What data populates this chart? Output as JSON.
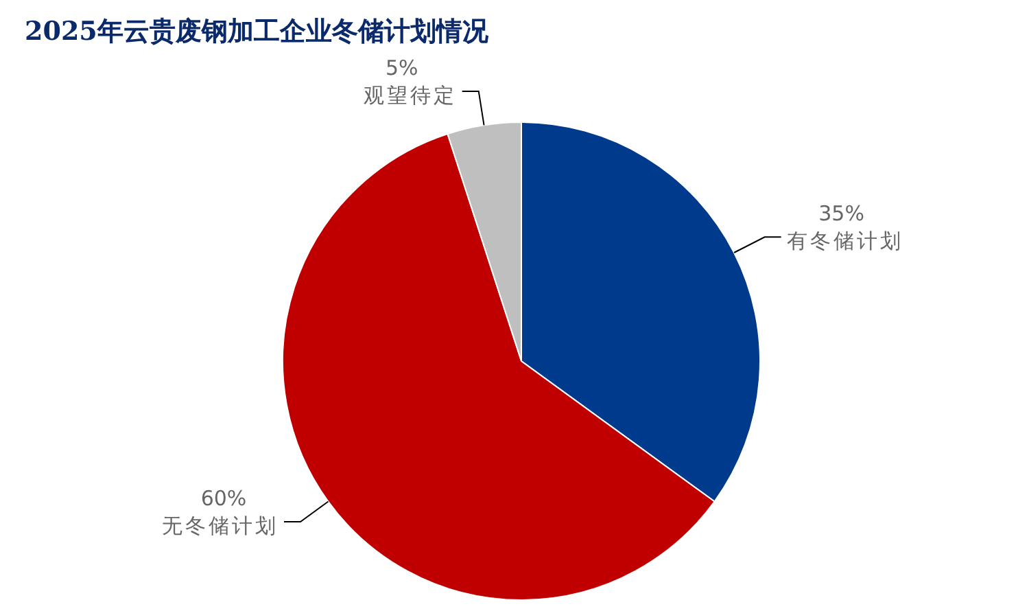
{
  "chart_data": {
    "type": "pie",
    "title": "2025年云贵废钢加工企业冬储计划情况",
    "categories": [
      "有冬储计划",
      "无冬储计划",
      "观望待定"
    ],
    "values": [
      35,
      60,
      5
    ],
    "colors": [
      "#003a8c",
      "#c00000",
      "#bfbfbf"
    ],
    "value_labels": [
      "35%",
      "60%",
      "5%"
    ],
    "legend": false
  }
}
